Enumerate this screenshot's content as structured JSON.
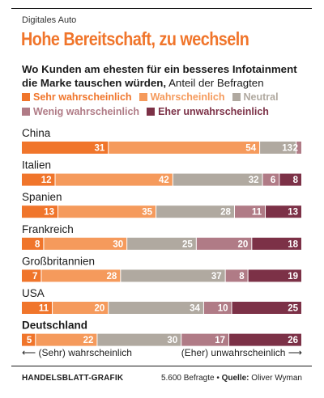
{
  "kicker": "Digitales Auto",
  "headline": "Hohe Bereitschaft, zu wechseln",
  "subtitle_bold": "Wo Kunden am ehesten für ein besseres Infotainment die Marke tauschen würden,",
  "subtitle_regular": "Anteil der Befragten",
  "note_left": "⟵ (Sehr) wahrscheinlich",
  "note_right": "(Eher) unwahrscheinlich ⟶",
  "footer_left": "HANDELSBLATT-GRAFIK",
  "footer_sample": "5.600 Befragte",
  "footer_source_label": "Quelle:",
  "footer_source": "Oliver Wyman",
  "chart_data": {
    "type": "bar",
    "orientation": "horizontal",
    "stacked": true,
    "categories": [
      "China",
      "Italien",
      "Spanien",
      "Frankreich",
      "Großbritannien",
      "USA",
      "Deutschland"
    ],
    "highlight_category": "Deutschland",
    "legend_position": "top",
    "series": [
      {
        "name": "Sehr wahrscheinlich",
        "color": "#f0752b",
        "values": [
          31,
          12,
          13,
          8,
          7,
          11,
          5
        ]
      },
      {
        "name": "Wahrscheinlich",
        "color": "#f59a5c",
        "values": [
          54,
          42,
          35,
          30,
          28,
          20,
          22
        ]
      },
      {
        "name": "Neutral",
        "color": "#b0a9a0",
        "values": [
          13,
          32,
          28,
          25,
          37,
          34,
          30
        ]
      },
      {
        "name": "Wenig wahrscheinlich",
        "color": "#b07b86",
        "values": [
          2,
          6,
          11,
          20,
          8,
          10,
          17
        ]
      },
      {
        "name": "Eher unwahrscheinlich",
        "color": "#7c3147",
        "values": [
          0,
          8,
          13,
          18,
          19,
          25,
          26
        ]
      }
    ]
  }
}
